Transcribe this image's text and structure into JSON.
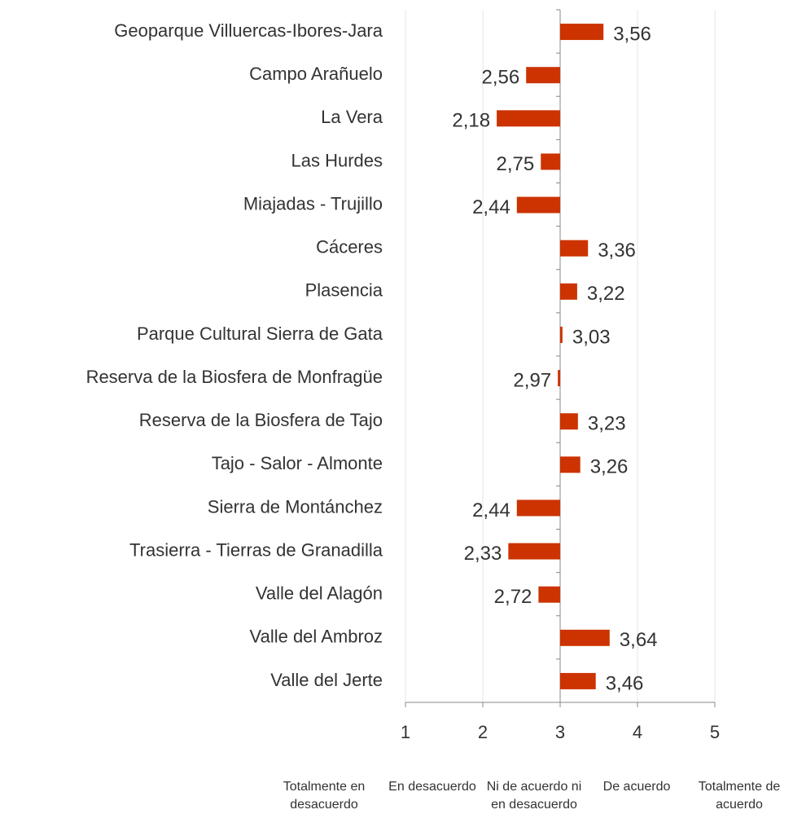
{
  "chart_data": {
    "type": "bar",
    "orientation": "horizontal",
    "base": 3,
    "categories": [
      "Geoparque Villuercas-Ibores-Jara",
      "Campo Arañuelo",
      "La Vera",
      "Las Hurdes",
      "Miajadas - Trujillo",
      "Cáceres",
      "Plasencia",
      "Parque Cultural Sierra de Gata",
      "Reserva de la Biosfera de Monfragüe",
      "Reserva de la Biosfera de Tajo",
      "Tajo - Salor - Almonte",
      "Sierra de Montánchez",
      "Trasierra - Tierras de Granadilla",
      "Valle del Alagón",
      "Valle del Ambroz",
      "Valle del Jerte"
    ],
    "values": [
      3.56,
      2.56,
      2.18,
      2.75,
      2.44,
      3.36,
      3.22,
      3.03,
      2.97,
      3.23,
      3.26,
      2.44,
      2.33,
      2.72,
      3.64,
      3.46
    ],
    "value_labels": [
      "3,56",
      "2,56",
      "2,18",
      "2,75",
      "2,44",
      "3,36",
      "3,22",
      "3,03",
      "2,97",
      "3,23",
      "3,26",
      "2,44",
      "2,33",
      "2,72",
      "3,64",
      "3,46"
    ],
    "color": "#cc3300",
    "xlim": [
      1,
      5
    ],
    "xticks": [
      1,
      2,
      3,
      4,
      5
    ],
    "grid": true,
    "scale_labels": [
      "Totalmente en desacuerdo",
      "En desacuerdo",
      "Ni de acuerdo ni en desacuerdo",
      "De acuerdo",
      "Totalmente de acuerdo"
    ]
  }
}
